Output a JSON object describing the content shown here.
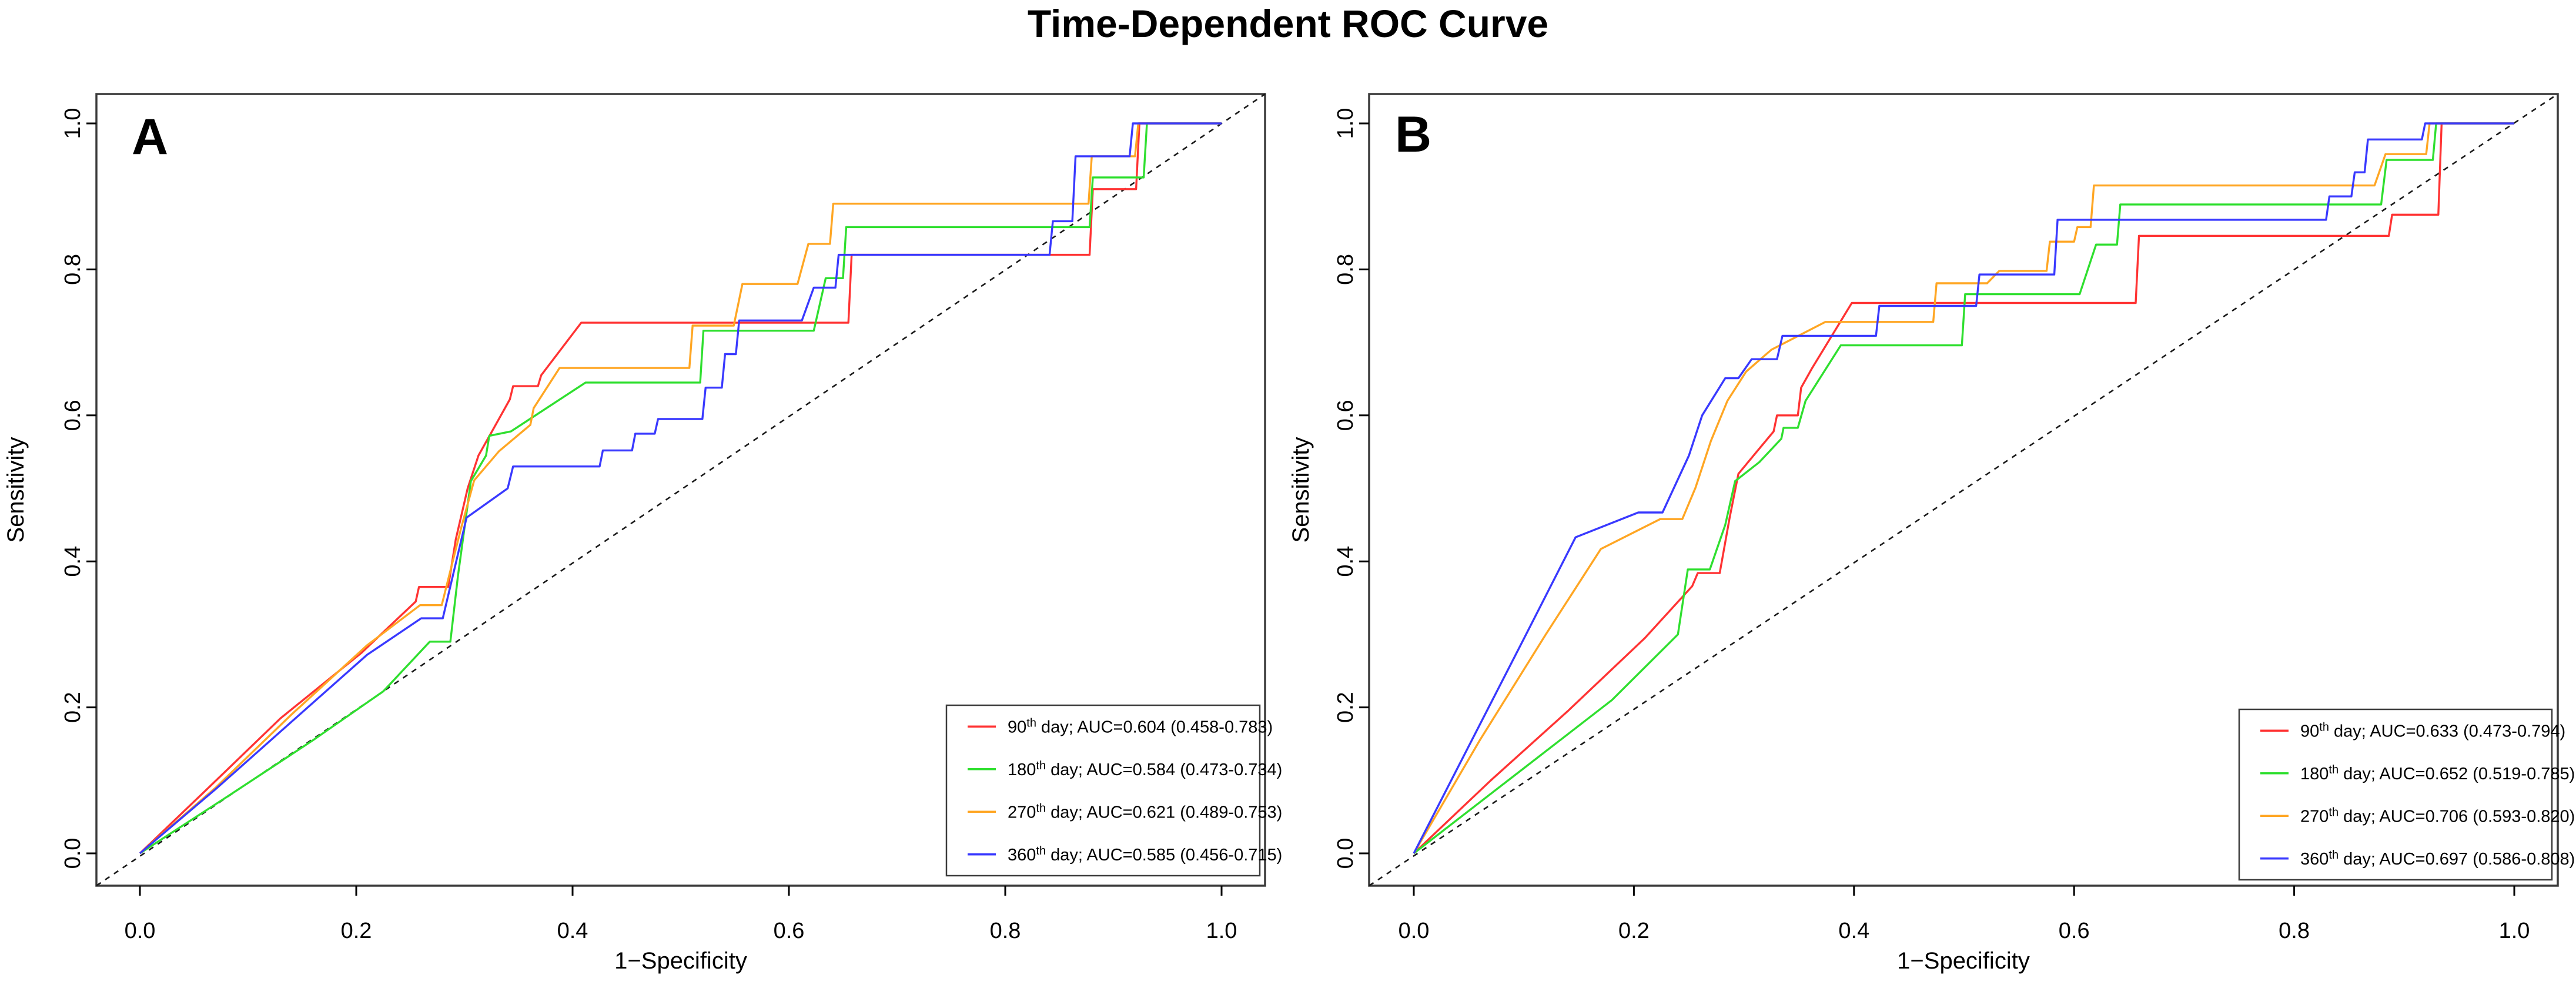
{
  "title": "Time-Dependent ROC Curve",
  "colors": {
    "day90": "#FF3333",
    "day180": "#2FDF2F",
    "day270": "#FFA623",
    "day360": "#3939FF",
    "diagonal": "#1A1A1A",
    "plot_border": "#3B3B3B",
    "legend_border": "#3B3B3B",
    "text": "#000000"
  },
  "chart_data": [
    {
      "type": "line",
      "panel_label": "A",
      "xlabel": "1−Specificity",
      "ylabel": "Sensitivity",
      "xlim": [
        0,
        1
      ],
      "ylim": [
        0,
        1
      ],
      "x_ticks": [
        "0.0",
        "0.2",
        "0.4",
        "0.6",
        "0.8",
        "1.0"
      ],
      "y_ticks": [
        "0.0",
        "0.2",
        "0.4",
        "0.6",
        "0.8",
        "1.0"
      ],
      "grid": false,
      "diagonal_reference": true,
      "legend_position": "bottom-right",
      "series": [
        {
          "name": "90th day",
          "day": "90",
          "ordinal_suffix": "th",
          "auc": 0.604,
          "ci_low": 0.458,
          "ci_high": 0.783,
          "legend_text": " day; AUC=0.604 (0.458-0.783)",
          "color": "#FF3333",
          "points": [
            [
              0,
              0
            ],
            [
              0.06,
              0.085
            ],
            [
              0.13,
              0.185
            ],
            [
              0.205,
              0.275
            ],
            [
              0.255,
              0.345
            ],
            [
              0.258,
              0.365
            ],
            [
              0.285,
              0.365
            ],
            [
              0.292,
              0.43
            ],
            [
              0.303,
              0.5
            ],
            [
              0.313,
              0.545
            ],
            [
              0.33,
              0.59
            ],
            [
              0.342,
              0.622
            ],
            [
              0.345,
              0.64
            ],
            [
              0.368,
              0.64
            ],
            [
              0.371,
              0.655
            ],
            [
              0.408,
              0.727
            ],
            [
              0.655,
              0.727
            ],
            [
              0.658,
              0.82
            ],
            [
              0.878,
              0.82
            ],
            [
              0.881,
              0.91
            ],
            [
              0.921,
              0.91
            ],
            [
              0.924,
              1
            ],
            [
              1,
              1
            ]
          ]
        },
        {
          "name": "180th day",
          "day": "180",
          "ordinal_suffix": "th",
          "auc": 0.584,
          "ci_low": 0.473,
          "ci_high": 0.734,
          "legend_text": " day; AUC=0.584 (0.473-0.734)",
          "color": "#2FDF2F",
          "points": [
            [
              0,
              0
            ],
            [
              0.08,
              0.077
            ],
            [
              0.16,
              0.155
            ],
            [
              0.225,
              0.222
            ],
            [
              0.268,
              0.29
            ],
            [
              0.287,
              0.29
            ],
            [
              0.294,
              0.38
            ],
            [
              0.306,
              0.51
            ],
            [
              0.32,
              0.545
            ],
            [
              0.323,
              0.572
            ],
            [
              0.343,
              0.578
            ],
            [
              0.412,
              0.645
            ],
            [
              0.518,
              0.645
            ],
            [
              0.521,
              0.716
            ],
            [
              0.623,
              0.716
            ],
            [
              0.634,
              0.788
            ],
            [
              0.65,
              0.788
            ],
            [
              0.653,
              0.858
            ],
            [
              0.878,
              0.858
            ],
            [
              0.881,
              0.926
            ],
            [
              0.928,
              0.926
            ],
            [
              0.931,
              1
            ],
            [
              1,
              1
            ]
          ]
        },
        {
          "name": "270th day",
          "day": "270",
          "ordinal_suffix": "th",
          "auc": 0.621,
          "ci_low": 0.489,
          "ci_high": 0.753,
          "legend_text": " day; AUC=0.621 (0.489-0.753)",
          "color": "#FFA623",
          "points": [
            [
              0,
              0
            ],
            [
              0.07,
              0.09
            ],
            [
              0.14,
              0.19
            ],
            [
              0.21,
              0.285
            ],
            [
              0.259,
              0.34
            ],
            [
              0.279,
              0.34
            ],
            [
              0.297,
              0.446
            ],
            [
              0.309,
              0.511
            ],
            [
              0.332,
              0.551
            ],
            [
              0.361,
              0.587
            ],
            [
              0.364,
              0.61
            ],
            [
              0.388,
              0.665
            ],
            [
              0.508,
              0.665
            ],
            [
              0.511,
              0.723
            ],
            [
              0.549,
              0.723
            ],
            [
              0.557,
              0.78
            ],
            [
              0.608,
              0.78
            ],
            [
              0.618,
              0.835
            ],
            [
              0.638,
              0.835
            ],
            [
              0.641,
              0.89
            ],
            [
              0.877,
              0.89
            ],
            [
              0.88,
              0.955
            ],
            [
              0.92,
              0.955
            ],
            [
              0.923,
              1
            ],
            [
              1,
              1
            ]
          ]
        },
        {
          "name": "360th day",
          "day": "360",
          "ordinal_suffix": "th",
          "auc": 0.585,
          "ci_low": 0.456,
          "ci_high": 0.715,
          "legend_text": " day; AUC=0.585 (0.456-0.715)",
          "color": "#3939FF",
          "points": [
            [
              0,
              0
            ],
            [
              0.07,
              0.088
            ],
            [
              0.14,
              0.18
            ],
            [
              0.21,
              0.272
            ],
            [
              0.26,
              0.322
            ],
            [
              0.28,
              0.322
            ],
            [
              0.302,
              0.46
            ],
            [
              0.34,
              0.5
            ],
            [
              0.345,
              0.53
            ],
            [
              0.425,
              0.53
            ],
            [
              0.428,
              0.552
            ],
            [
              0.455,
              0.552
            ],
            [
              0.458,
              0.575
            ],
            [
              0.476,
              0.575
            ],
            [
              0.479,
              0.595
            ],
            [
              0.52,
              0.595
            ],
            [
              0.523,
              0.638
            ],
            [
              0.538,
              0.638
            ],
            [
              0.541,
              0.684
            ],
            [
              0.551,
              0.684
            ],
            [
              0.554,
              0.73
            ],
            [
              0.612,
              0.73
            ],
            [
              0.623,
              0.775
            ],
            [
              0.643,
              0.775
            ],
            [
              0.646,
              0.82
            ],
            [
              0.841,
              0.82
            ],
            [
              0.844,
              0.866
            ],
            [
              0.862,
              0.866
            ],
            [
              0.865,
              0.955
            ],
            [
              0.915,
              0.955
            ],
            [
              0.918,
              1
            ],
            [
              1,
              1
            ]
          ]
        }
      ]
    },
    {
      "type": "line",
      "panel_label": "B",
      "xlabel": "1−Specificity",
      "ylabel": "Sensitivity",
      "xlim": [
        0,
        1
      ],
      "ylim": [
        0,
        1
      ],
      "x_ticks": [
        "0.0",
        "0.2",
        "0.4",
        "0.6",
        "0.8",
        "1.0"
      ],
      "y_ticks": [
        "0.0",
        "0.2",
        "0.4",
        "0.6",
        "0.8",
        "1.0"
      ],
      "grid": false,
      "diagonal_reference": true,
      "legend_position": "bottom-right",
      "series": [
        {
          "name": "90th day",
          "day": "90",
          "ordinal_suffix": "th",
          "auc": 0.633,
          "ci_low": 0.473,
          "ci_high": 0.794,
          "legend_text": " day; AUC=0.633 (0.473-0.794)",
          "color": "#FF3333",
          "points": [
            [
              0,
              0
            ],
            [
              0.07,
              0.1
            ],
            [
              0.14,
              0.195
            ],
            [
              0.21,
              0.295
            ],
            [
              0.253,
              0.366
            ],
            [
              0.258,
              0.384
            ],
            [
              0.278,
              0.384
            ],
            [
              0.287,
              0.46
            ],
            [
              0.295,
              0.52
            ],
            [
              0.312,
              0.551
            ],
            [
              0.327,
              0.578
            ],
            [
              0.33,
              0.6
            ],
            [
              0.349,
              0.6
            ],
            [
              0.352,
              0.638
            ],
            [
              0.362,
              0.665
            ],
            [
              0.398,
              0.754
            ],
            [
              0.656,
              0.754
            ],
            [
              0.659,
              0.846
            ],
            [
              0.886,
              0.846
            ],
            [
              0.889,
              0.875
            ],
            [
              0.931,
              0.875
            ],
            [
              0.934,
              1
            ],
            [
              1,
              1
            ]
          ]
        },
        {
          "name": "180th day",
          "day": "180",
          "ordinal_suffix": "th",
          "auc": 0.652,
          "ci_low": 0.519,
          "ci_high": 0.785,
          "legend_text": " day; AUC=0.652 (0.519-0.785)",
          "color": "#2FDF2F",
          "points": [
            [
              0,
              0
            ],
            [
              0.09,
              0.105
            ],
            [
              0.18,
              0.21
            ],
            [
              0.24,
              0.3
            ],
            [
              0.249,
              0.389
            ],
            [
              0.269,
              0.389
            ],
            [
              0.283,
              0.45
            ],
            [
              0.292,
              0.51
            ],
            [
              0.314,
              0.536
            ],
            [
              0.334,
              0.568
            ],
            [
              0.336,
              0.583
            ],
            [
              0.349,
              0.583
            ],
            [
              0.356,
              0.62
            ],
            [
              0.388,
              0.696
            ],
            [
              0.498,
              0.696
            ],
            [
              0.501,
              0.766
            ],
            [
              0.605,
              0.766
            ],
            [
              0.62,
              0.834
            ],
            [
              0.639,
              0.834
            ],
            [
              0.642,
              0.889
            ],
            [
              0.879,
              0.889
            ],
            [
              0.884,
              0.95
            ],
            [
              0.926,
              0.95
            ],
            [
              0.929,
              1
            ],
            [
              1,
              1
            ]
          ]
        },
        {
          "name": "270th day",
          "day": "270",
          "ordinal_suffix": "th",
          "auc": 0.706,
          "ci_low": 0.593,
          "ci_high": 0.82,
          "legend_text": " day; AUC=0.706 (0.593-0.820)",
          "color": "#FFA623",
          "points": [
            [
              0,
              0
            ],
            [
              0.06,
              0.155
            ],
            [
              0.12,
              0.3
            ],
            [
              0.17,
              0.417
            ],
            [
              0.224,
              0.458
            ],
            [
              0.244,
              0.458
            ],
            [
              0.256,
              0.501
            ],
            [
              0.27,
              0.565
            ],
            [
              0.285,
              0.62
            ],
            [
              0.302,
              0.66
            ],
            [
              0.325,
              0.69
            ],
            [
              0.374,
              0.728
            ],
            [
              0.472,
              0.728
            ],
            [
              0.475,
              0.781
            ],
            [
              0.521,
              0.781
            ],
            [
              0.532,
              0.798
            ],
            [
              0.575,
              0.798
            ],
            [
              0.578,
              0.838
            ],
            [
              0.6,
              0.838
            ],
            [
              0.603,
              0.858
            ],
            [
              0.615,
              0.858
            ],
            [
              0.618,
              0.915
            ],
            [
              0.873,
              0.915
            ],
            [
              0.883,
              0.958
            ],
            [
              0.92,
              0.958
            ],
            [
              0.923,
              1
            ],
            [
              1,
              1
            ]
          ]
        },
        {
          "name": "360th day",
          "day": "360",
          "ordinal_suffix": "th",
          "auc": 0.697,
          "ci_low": 0.586,
          "ci_high": 0.808,
          "legend_text": " day; AUC=0.697 (0.586-0.808)",
          "color": "#3939FF",
          "points": [
            [
              0,
              0
            ],
            [
              0.05,
              0.147
            ],
            [
              0.1,
              0.294
            ],
            [
              0.147,
              0.433
            ],
            [
              0.204,
              0.467
            ],
            [
              0.226,
              0.467
            ],
            [
              0.25,
              0.545
            ],
            [
              0.262,
              0.6
            ],
            [
              0.283,
              0.651
            ],
            [
              0.295,
              0.651
            ],
            [
              0.307,
              0.677
            ],
            [
              0.33,
              0.677
            ],
            [
              0.335,
              0.709
            ],
            [
              0.42,
              0.709
            ],
            [
              0.423,
              0.75
            ],
            [
              0.511,
              0.75
            ],
            [
              0.514,
              0.793
            ],
            [
              0.582,
              0.793
            ],
            [
              0.585,
              0.868
            ],
            [
              0.829,
              0.868
            ],
            [
              0.832,
              0.9
            ],
            [
              0.852,
              0.9
            ],
            [
              0.855,
              0.933
            ],
            [
              0.864,
              0.933
            ],
            [
              0.867,
              0.978
            ],
            [
              0.916,
              0.978
            ],
            [
              0.919,
              1
            ],
            [
              1,
              1
            ]
          ]
        }
      ]
    }
  ]
}
